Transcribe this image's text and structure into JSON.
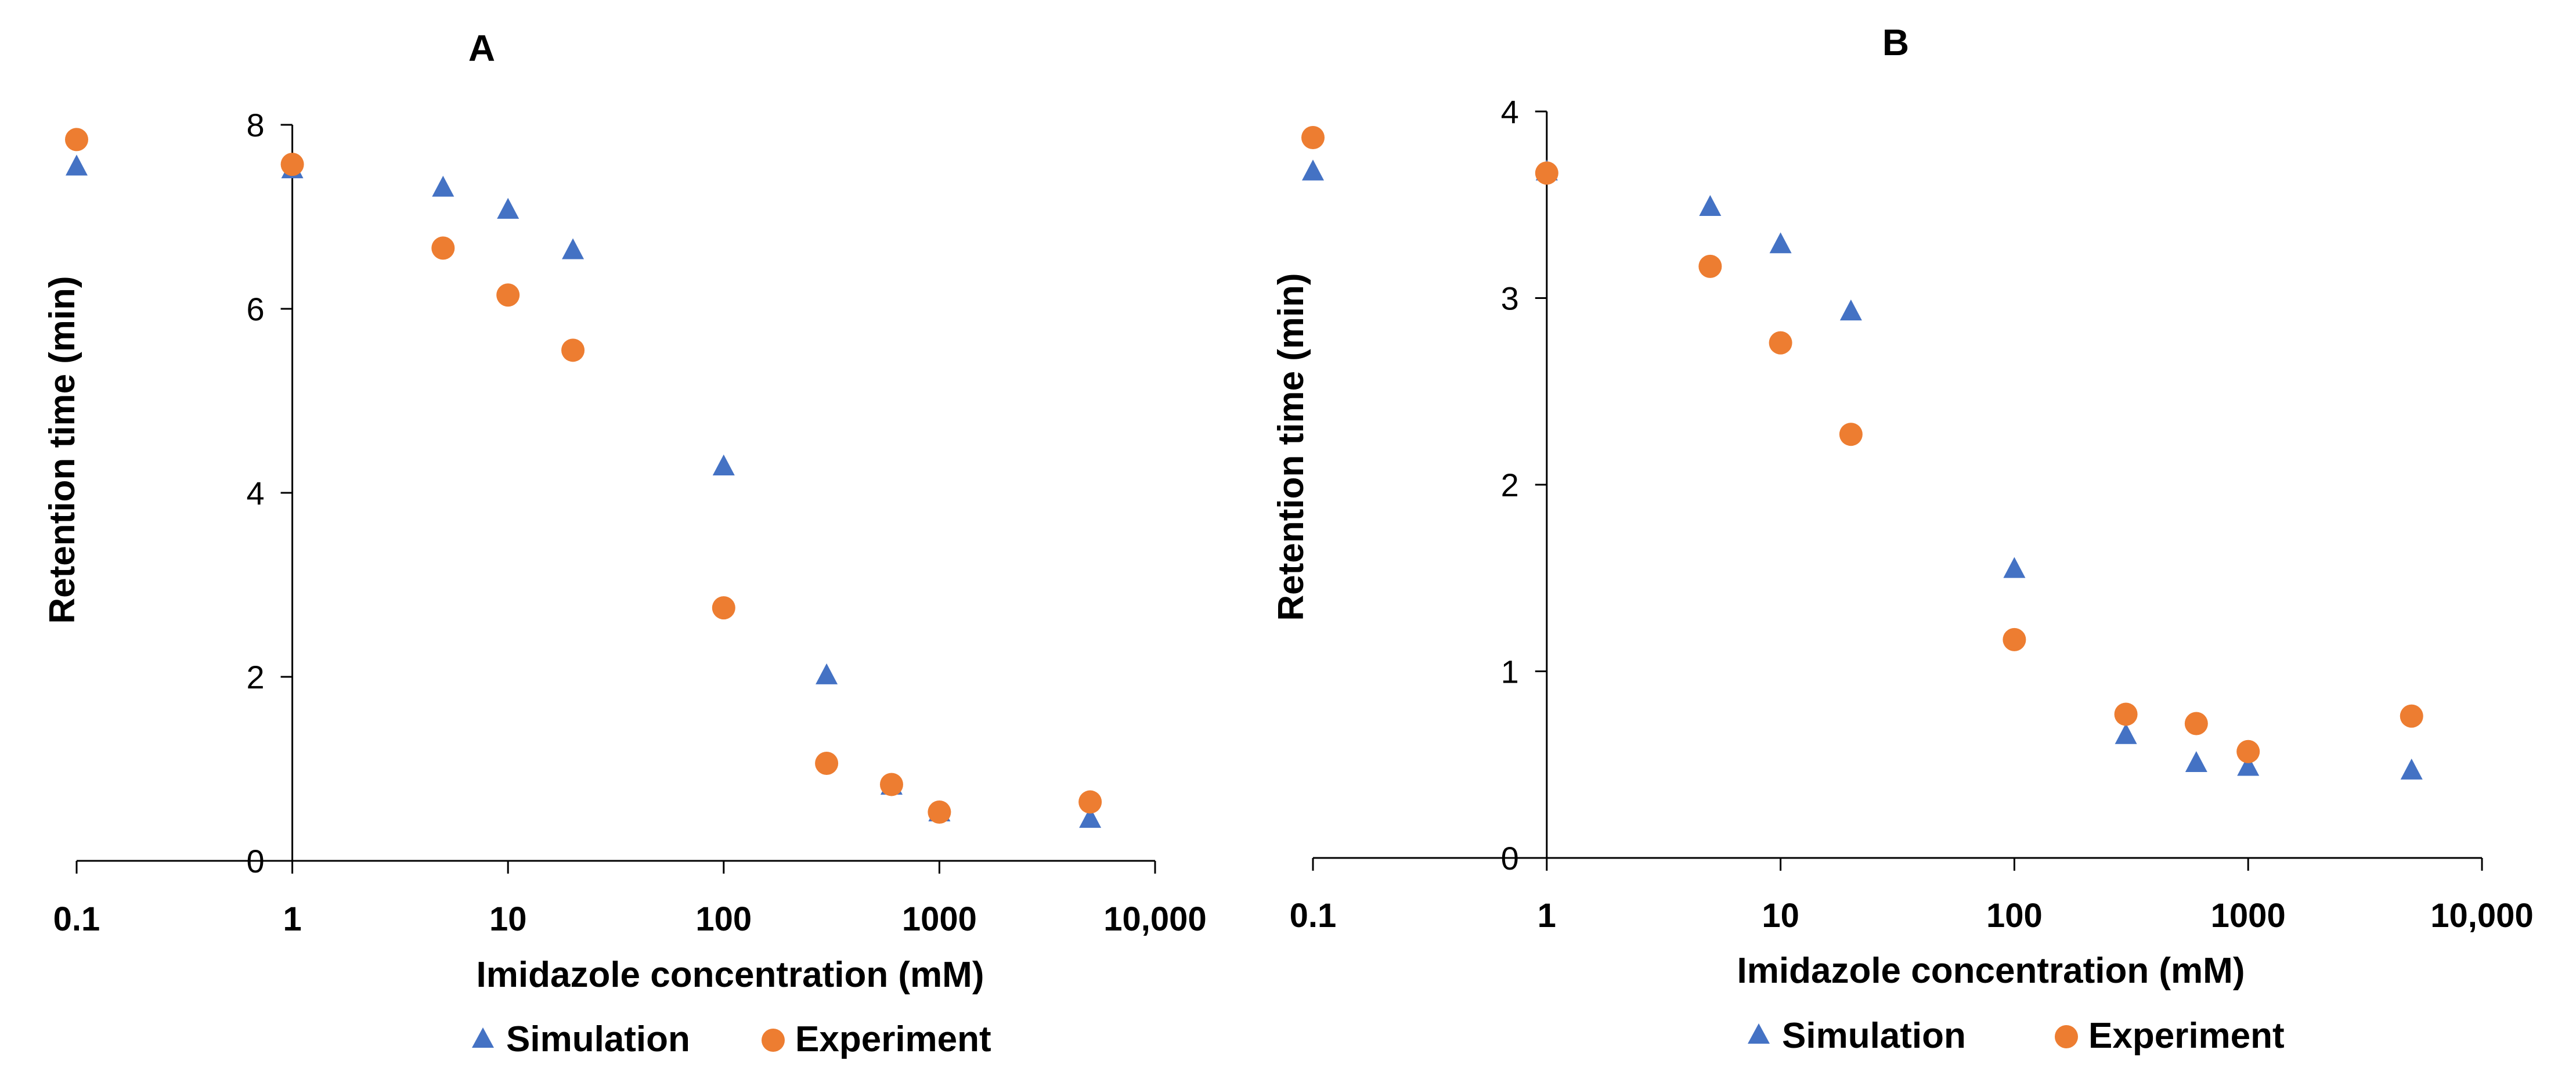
{
  "chart_data": [
    {
      "panel": "A",
      "type": "scatter",
      "title": "A",
      "xlabel": "Imidazole concentration (mM)",
      "ylabel": "Retention time (min)",
      "xscale": "log",
      "xlim": [
        0.1,
        10000
      ],
      "ylim": [
        0,
        8
      ],
      "xticks": [
        0.1,
        1,
        10,
        100,
        1000,
        10000
      ],
      "xtick_labels": [
        "0.1",
        "1",
        "10",
        "100",
        "1000",
        "10,000"
      ],
      "yticks": [
        0,
        2,
        4,
        6,
        8
      ],
      "ytick_labels": [
        "0",
        "2",
        "4",
        "6",
        "8"
      ],
      "legend_position": "bottom-center",
      "series": [
        {
          "name": "Simulation",
          "marker": "triangle",
          "color": "#4472C4",
          "x": [
            0.1,
            1,
            5,
            10,
            20,
            100,
            300,
            600,
            1000,
            5000
          ],
          "y": [
            7.55,
            7.52,
            7.32,
            7.08,
            6.64,
            4.29,
            2.02,
            0.82,
            0.53,
            0.46
          ]
        },
        {
          "name": "Experiment",
          "marker": "circle",
          "color": "#ED7D31",
          "x": [
            0.1,
            1,
            5,
            10,
            20,
            100,
            300,
            600,
            1000,
            5000
          ],
          "y": [
            7.84,
            7.57,
            6.66,
            6.15,
            5.55,
            2.75,
            1.06,
            0.83,
            0.53,
            0.64
          ]
        }
      ]
    },
    {
      "panel": "B",
      "type": "scatter",
      "title": "B",
      "xlabel": "Imidazole concentration (mM)",
      "ylabel": "Retention time (min)",
      "xscale": "log",
      "xlim": [
        0.1,
        10000
      ],
      "ylim": [
        0,
        4
      ],
      "xticks": [
        0.1,
        1,
        10,
        100,
        1000,
        10000
      ],
      "xtick_labels": [
        "0.1",
        "1",
        "10",
        "100",
        "1000",
        "10,000"
      ],
      "yticks": [
        0,
        1,
        2,
        3,
        4
      ],
      "ytick_labels": [
        "0",
        "1",
        "2",
        "3",
        "4"
      ],
      "legend_position": "bottom-center",
      "series": [
        {
          "name": "Simulation",
          "marker": "triangle",
          "color": "#4472C4",
          "x": [
            0.1,
            1,
            5,
            10,
            20,
            100,
            300,
            600,
            1000,
            5000
          ],
          "y": [
            3.68,
            3.68,
            3.49,
            3.29,
            2.93,
            1.55,
            0.66,
            0.51,
            0.49,
            0.47
          ]
        },
        {
          "name": "Experiment",
          "marker": "circle",
          "color": "#ED7D31",
          "x": [
            0.1,
            1,
            5,
            10,
            20,
            100,
            300,
            600,
            1000,
            5000
          ],
          "y": [
            3.86,
            3.67,
            3.17,
            2.76,
            2.27,
            1.17,
            0.77,
            0.72,
            0.57,
            0.76
          ]
        }
      ]
    }
  ]
}
